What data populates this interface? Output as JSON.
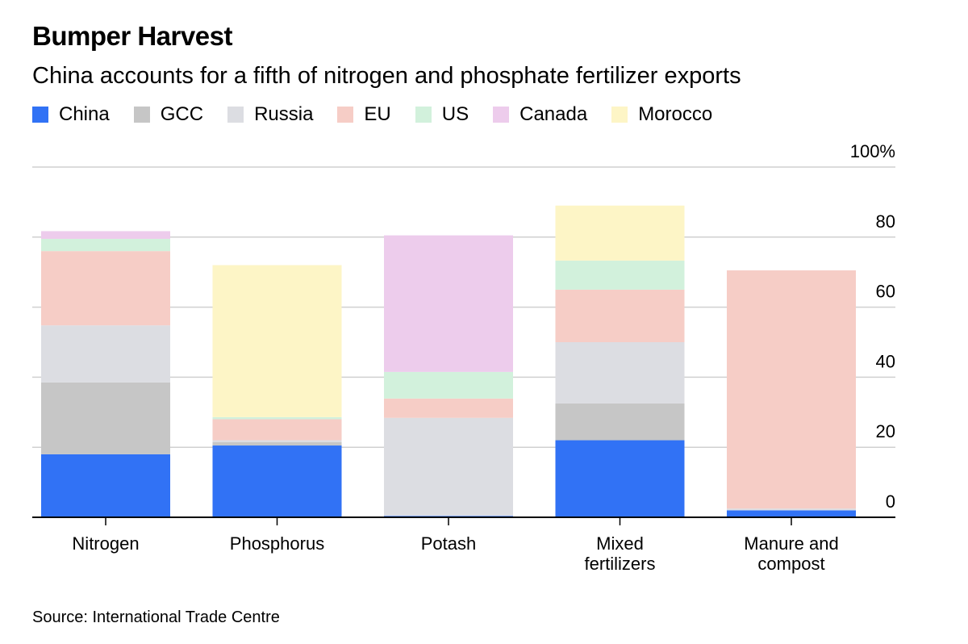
{
  "chart_data": {
    "type": "bar",
    "stacked": true,
    "title": "Bumper Harvest",
    "subtitle": "China accounts for a fifth of nitrogen and phosphate fertilizer exports",
    "source": "Source: International Trade Centre",
    "categories": [
      "Nitrogen",
      "Phosphorus",
      "Potash",
      "Mixed fertilizers",
      "Manure and compost"
    ],
    "category_lines": [
      [
        "Nitrogen"
      ],
      [
        "Phosphorus"
      ],
      [
        "Potash"
      ],
      [
        "Mixed",
        "fertilizers"
      ],
      [
        "Manure and",
        "compost"
      ]
    ],
    "ylim": [
      0,
      100
    ],
    "yticks": [
      0,
      20,
      40,
      60,
      80,
      100
    ],
    "ytick_labels": [
      "0",
      "20",
      "40",
      "60",
      "80",
      "100%"
    ],
    "series": [
      {
        "name": "China",
        "color": "#3172f5",
        "values": [
          18.0,
          20.5,
          0.4,
          22.0,
          2.0
        ]
      },
      {
        "name": "GCC",
        "color": "#c6c6c6",
        "values": [
          20.5,
          1.0,
          0.0,
          10.5,
          0.0
        ]
      },
      {
        "name": "Russia",
        "color": "#dcdde2",
        "values": [
          16.3,
          0.5,
          28.0,
          17.5,
          0.5
        ]
      },
      {
        "name": "EU",
        "color": "#f6cdc6",
        "values": [
          21.2,
          6.0,
          5.5,
          15.0,
          68.0
        ]
      },
      {
        "name": "US",
        "color": "#d2f1dc",
        "values": [
          3.5,
          0.6,
          7.6,
          8.3,
          0.0
        ]
      },
      {
        "name": "Canada",
        "color": "#edccec",
        "values": [
          2.2,
          0.0,
          39.0,
          0.0,
          0.0
        ]
      },
      {
        "name": "Morocco",
        "color": "#fdf5c6",
        "values": [
          0.0,
          43.4,
          0.0,
          15.7,
          0.0
        ]
      }
    ]
  }
}
